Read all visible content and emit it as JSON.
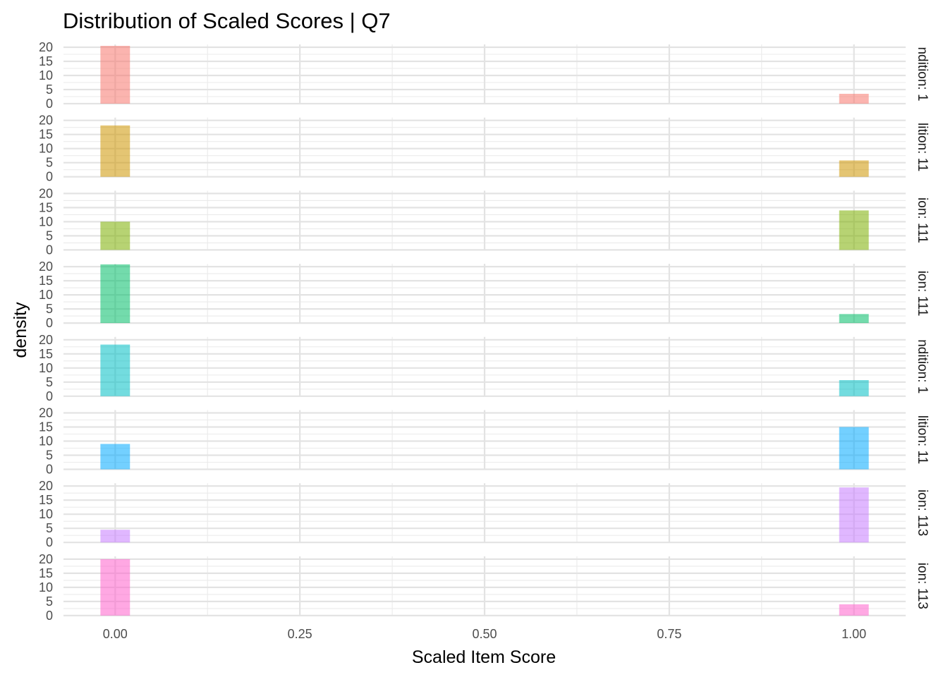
{
  "chart_data": {
    "type": "bar",
    "title": "Distribution of Scaled Scores | Q7",
    "xlabel": "Scaled Item Score",
    "ylabel": "density",
    "xlim": [
      -0.07,
      1.07
    ],
    "ylim": [
      0,
      21
    ],
    "x_ticks": [
      {
        "value": 0,
        "label": "0.00"
      },
      {
        "value": 0.25,
        "label": "0.25"
      },
      {
        "value": 0.5,
        "label": "0.50"
      },
      {
        "value": 0.75,
        "label": "0.75"
      },
      {
        "value": 1,
        "label": "1.00"
      }
    ],
    "x_minor": [
      0.125,
      0.375,
      0.625,
      0.875
    ],
    "y_ticks": [
      0,
      5,
      10,
      15,
      20
    ],
    "bin_width": 0.04,
    "grid": true,
    "legend": "none",
    "facets": [
      {
        "strip": "ndition: 1",
        "color": "#F8766D",
        "bins": [
          {
            "x": 0,
            "density": 20.5
          },
          {
            "x": 1,
            "density": 3.5
          }
        ]
      },
      {
        "strip": "lition: 11",
        "color": "#CD9600",
        "bins": [
          {
            "x": 0,
            "density": 18.2
          },
          {
            "x": 1,
            "density": 5.8
          }
        ]
      },
      {
        "strip": "ion: 111",
        "color": "#7CAE00",
        "bins": [
          {
            "x": 0,
            "density": 10.0
          },
          {
            "x": 1,
            "density": 14.0
          }
        ]
      },
      {
        "strip": "ion: 111",
        "color": "#00BE67",
        "bins": [
          {
            "x": 0,
            "density": 20.8
          },
          {
            "x": 1,
            "density": 3.2
          }
        ]
      },
      {
        "strip": "ndition: 1",
        "color": "#00BFC4",
        "bins": [
          {
            "x": 0,
            "density": 18.3
          },
          {
            "x": 1,
            "density": 5.7
          }
        ]
      },
      {
        "strip": "lition: 11",
        "color": "#00A9FF",
        "bins": [
          {
            "x": 0,
            "density": 9.0
          },
          {
            "x": 1,
            "density": 15.0
          }
        ]
      },
      {
        "strip": "ion: 113",
        "color": "#C77CFF",
        "bins": [
          {
            "x": 0,
            "density": 4.5
          },
          {
            "x": 1,
            "density": 19.5
          }
        ]
      },
      {
        "strip": "ion: 113",
        "color": "#FF61CC",
        "bins": [
          {
            "x": 0,
            "density": 20.0
          },
          {
            "x": 1,
            "density": 4.0
          }
        ]
      }
    ]
  }
}
